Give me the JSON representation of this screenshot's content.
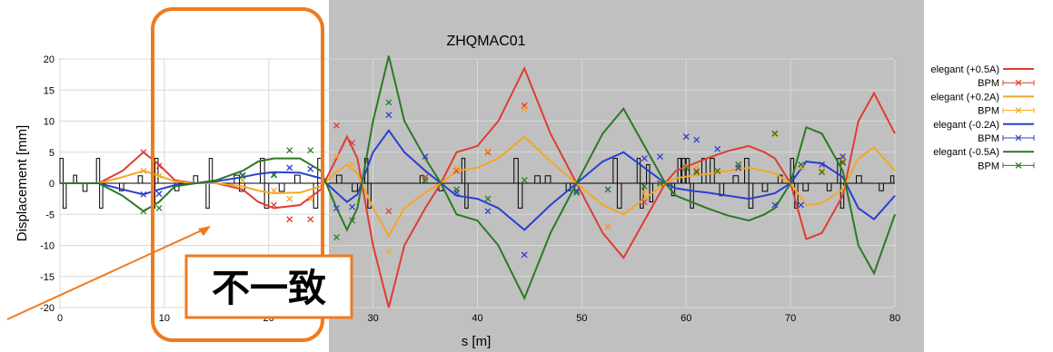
{
  "chart_data": {
    "type": "line",
    "title": "ZHQMAC01",
    "xlabel": "s [m]",
    "ylabel": "Displacement [mm]",
    "xlim": [
      0,
      80
    ],
    "ylim": [
      -20,
      20
    ],
    "xticks": [
      "0",
      "10",
      "20",
      "30",
      "40",
      "50",
      "60",
      "70",
      "80"
    ],
    "yticks": [
      "20",
      "15",
      "10",
      "5",
      "0",
      "-5",
      "-10",
      "-15",
      "-20"
    ],
    "grid": true,
    "legend_position": "right",
    "colors": {
      "p05": "#e03c32",
      "p02": "#f5a623",
      "m02": "#2a3fd0",
      "m05": "#2a7a22",
      "shade": "#c0c0c0",
      "annotation": "#f07a1e"
    },
    "series": [
      {
        "key": "p05",
        "name": "elegant (+0.5A)",
        "bpm_name": "BPM",
        "x": [
          0,
          3.7,
          6,
          8,
          9.5,
          11,
          13,
          15,
          17.5,
          19,
          20.5,
          23,
          25,
          26.5,
          27.5,
          28.5,
          30,
          31.5,
          33,
          35,
          36.5,
          38,
          40,
          42,
          44.5,
          47,
          49.5,
          52,
          54,
          56,
          58,
          59,
          60.5,
          62,
          64,
          66,
          67.5,
          68.5,
          70,
          71.5,
          73,
          75,
          76.5,
          78,
          80
        ],
        "y": [
          0,
          0,
          2,
          5,
          3,
          0.5,
          0,
          0,
          -1,
          -3,
          -4,
          -3.5,
          -1,
          4,
          7.5,
          4,
          -10,
          -20,
          -10,
          -4,
          0,
          5,
          6,
          10,
          18.5,
          8,
          0,
          -8,
          -12,
          -6,
          0,
          2,
          3,
          4,
          5.2,
          6,
          5,
          4,
          0,
          -9,
          -8,
          -2,
          10,
          14.5,
          8
        ]
      },
      {
        "key": "p02",
        "name": "elegant (+0.2A)",
        "bpm_name": "BPM",
        "x": [
          0,
          3.7,
          6,
          8,
          9.5,
          11,
          13,
          15,
          17.5,
          19,
          20.5,
          23,
          25,
          26.5,
          27.5,
          28.5,
          30,
          31.5,
          33,
          35,
          36.5,
          38,
          40,
          42,
          44.5,
          47,
          49.5,
          52,
          54,
          56,
          58,
          59,
          60.5,
          62,
          64,
          66,
          67.5,
          68.5,
          70,
          71.5,
          73,
          75,
          76.5,
          78,
          80
        ],
        "y": [
          0,
          0,
          1,
          2,
          1.2,
          0.3,
          0,
          0,
          -0.5,
          -1.2,
          -1.6,
          -1.5,
          -0.5,
          1.8,
          3,
          1.6,
          -4,
          -8.5,
          -4,
          -1.5,
          0,
          2,
          2.5,
          4,
          7.5,
          3.5,
          0,
          -3.5,
          -5,
          -2.5,
          0,
          0.8,
          1.2,
          1.5,
          2,
          2.5,
          2,
          1.6,
          0,
          -3.5,
          -3.2,
          -1,
          4,
          5.8,
          2
        ]
      },
      {
        "key": "m02",
        "name": "elegant (-0.2A)",
        "bpm_name": "BPM",
        "x": [
          0,
          3.7,
          6,
          8,
          9.5,
          11,
          13,
          15,
          17.5,
          19,
          20.5,
          23,
          25,
          26.5,
          27.5,
          28.5,
          30,
          31.5,
          33,
          35,
          36.5,
          38,
          40,
          42,
          44.5,
          47,
          49.5,
          52,
          54,
          56,
          58,
          59,
          60.5,
          62,
          64,
          66,
          67.5,
          68.5,
          70,
          71.5,
          73,
          75,
          76.5,
          78,
          80
        ],
        "y": [
          0,
          0,
          -1,
          -1.8,
          -1,
          -0.3,
          0,
          0.3,
          1,
          1.5,
          1.8,
          1.7,
          0.8,
          -1.5,
          -3,
          -1.8,
          5,
          8.5,
          5,
          2,
          0,
          -2,
          -2.5,
          -4,
          -7.5,
          -3.5,
          0,
          3.5,
          5,
          2.5,
          0,
          -0.8,
          -1.2,
          -1.5,
          -2,
          -2.5,
          -2,
          -1.6,
          0,
          3.5,
          3.2,
          1,
          -4,
          -5.8,
          -2
        ]
      },
      {
        "key": "m05",
        "name": "elegant (-0.5A)",
        "bpm_name": "BPM",
        "x": [
          0,
          3.7,
          6,
          8,
          9.5,
          11,
          13,
          15,
          17.5,
          19,
          20.5,
          23,
          25,
          26.5,
          27.5,
          28.5,
          30,
          31.5,
          33,
          35,
          36.5,
          38,
          40,
          42,
          44.5,
          47,
          49.5,
          52,
          54,
          56,
          58,
          59,
          60.5,
          62,
          64,
          66,
          67.5,
          68.5,
          70,
          71.5,
          73,
          75,
          76.5,
          78,
          80
        ],
        "y": [
          0,
          0,
          -2,
          -4.5,
          -3,
          -0.5,
          0,
          0.5,
          2,
          3.5,
          4,
          4,
          2,
          -4,
          -7.5,
          -4,
          10,
          20.5,
          10,
          4,
          0,
          -5,
          -6,
          -10,
          -18.5,
          -8,
          0,
          8,
          12,
          6,
          0,
          -2,
          -3,
          -4,
          -5.2,
          -6,
          -5,
          -4,
          0,
          9,
          8,
          2,
          -10,
          -14.5,
          -5
        ]
      }
    ],
    "bpm_points": {
      "x": [
        8,
        9.5,
        17.5,
        20.5,
        22,
        24,
        26.5,
        28,
        31.5,
        35,
        38,
        41,
        44.5,
        49.5,
        52.5,
        56,
        57.5,
        60,
        61,
        63,
        65,
        68.5,
        71,
        73,
        75
      ],
      "p05": [
        5,
        2.8,
        1.2,
        -3.5,
        -5.8,
        -5.8,
        9.3,
        6.5,
        -4.5,
        1,
        2,
        5,
        12.5,
        -1.5,
        -7,
        -3,
        0,
        2.5,
        2,
        1.8,
        3,
        8,
        2.5,
        1.8,
        3.5
      ],
      "p02": [
        2,
        1.2,
        0.5,
        -1.2,
        -2.5,
        -2.5,
        4.3,
        3,
        -11,
        0.5,
        2.5,
        5.2,
        12,
        -1.2,
        -7,
        -1.5,
        0,
        2.8,
        2.5,
        1.8,
        2.3,
        7.8,
        2.5,
        2,
        4
      ],
      "m02": [
        -1.8,
        -1.7,
        1.3,
        1.4,
        2.5,
        2.3,
        -4,
        -3.8,
        11,
        4.3,
        -1.5,
        -4.5,
        -11.5,
        -1.2,
        -1,
        4,
        4.3,
        7.5,
        7,
        5.5,
        2.5,
        -3.5,
        -3.5,
        3,
        4.3
      ],
      "m05": [
        -4.5,
        -4,
        1.2,
        1.3,
        5.3,
        5.3,
        -8.7,
        -6,
        13,
        0.5,
        -1,
        -2.5,
        0.5,
        -1.5,
        -1,
        -0.5,
        0,
        2.5,
        1.8,
        2,
        3,
        8,
        3,
        1.8,
        3.3
      ]
    },
    "lattice_elements": [
      {
        "s": 0,
        "w": 0.3,
        "h": 4
      },
      {
        "s": 0.3,
        "w": 0.3,
        "h": -4
      },
      {
        "s": 1.3,
        "w": 0.3,
        "h": 1.3
      },
      {
        "s": 2.2,
        "w": 0.4,
        "h": -1.3
      },
      {
        "s": 3.5,
        "w": 0.3,
        "h": 4
      },
      {
        "s": 3.8,
        "w": 0.3,
        "h": -4
      },
      {
        "s": 5.7,
        "w": 0.4,
        "h": -1.2
      },
      {
        "s": 7.5,
        "w": 0.4,
        "h": 1.2
      },
      {
        "s": 8.8,
        "w": 0.3,
        "h": -4
      },
      {
        "s": 9.1,
        "w": 0.3,
        "h": 4
      },
      {
        "s": 11,
        "w": 0.4,
        "h": -1.2
      },
      {
        "s": 12.8,
        "w": 0.4,
        "h": 1.2
      },
      {
        "s": 14,
        "w": 0.3,
        "h": -4
      },
      {
        "s": 14.3,
        "w": 0.3,
        "h": 4
      },
      {
        "s": 16.7,
        "w": 0.5,
        "h": 1.3
      },
      {
        "s": 17.2,
        "w": 0.5,
        "h": -1.3
      },
      {
        "s": 19.2,
        "w": 0.4,
        "h": 4
      },
      {
        "s": 19.6,
        "w": 0.4,
        "h": -4
      },
      {
        "s": 21,
        "w": 0.5,
        "h": -1.3
      },
      {
        "s": 22.5,
        "w": 0.5,
        "h": 1.3
      },
      {
        "s": 24.3,
        "w": 0.4,
        "h": -4
      },
      {
        "s": 24.7,
        "w": 0.4,
        "h": 4
      },
      {
        "s": 26.5,
        "w": 0.5,
        "h": 1.3
      },
      {
        "s": 28,
        "w": 0.5,
        "h": -1.3
      },
      {
        "s": 29.2,
        "w": 0.3,
        "h": 4
      },
      {
        "s": 29.5,
        "w": 0.3,
        "h": -4
      },
      {
        "s": 34.5,
        "w": 0.4,
        "h": 1.2
      },
      {
        "s": 36.3,
        "w": 0.4,
        "h": -1.2
      },
      {
        "s": 38.5,
        "w": 0.3,
        "h": 4
      },
      {
        "s": 38.8,
        "w": 0.3,
        "h": -4
      },
      {
        "s": 43.5,
        "w": 0.4,
        "h": 4
      },
      {
        "s": 43.9,
        "w": 0.4,
        "h": -4
      },
      {
        "s": 45.5,
        "w": 0.5,
        "h": 1.2
      },
      {
        "s": 46.5,
        "w": 0.5,
        "h": 1.2
      },
      {
        "s": 48.5,
        "w": 0.4,
        "h": -1.2
      },
      {
        "s": 53,
        "w": 0.4,
        "h": 4
      },
      {
        "s": 53.4,
        "w": 0.4,
        "h": -4
      },
      {
        "s": 55.3,
        "w": 0.3,
        "h": 4
      },
      {
        "s": 55.6,
        "w": 0.3,
        "h": -4
      },
      {
        "s": 56.2,
        "w": 0.3,
        "h": 3
      },
      {
        "s": 56.5,
        "w": 0.3,
        "h": -3
      },
      {
        "s": 58.6,
        "w": 0.3,
        "h": -2
      },
      {
        "s": 59.2,
        "w": 0.3,
        "h": 4
      },
      {
        "s": 59.6,
        "w": 0.3,
        "h": 4
      },
      {
        "s": 60.0,
        "w": 0.3,
        "h": 4
      },
      {
        "s": 60.4,
        "w": 0.3,
        "h": -4
      },
      {
        "s": 61.5,
        "w": 0.4,
        "h": 4
      },
      {
        "s": 62.3,
        "w": 0.4,
        "h": 4
      },
      {
        "s": 63.2,
        "w": 0.4,
        "h": -2
      },
      {
        "s": 64.5,
        "w": 0.5,
        "h": 1.2
      },
      {
        "s": 65.6,
        "w": 0.4,
        "h": 4
      },
      {
        "s": 66.0,
        "w": 0.4,
        "h": -4
      },
      {
        "s": 67.3,
        "w": 0.5,
        "h": -1.3
      },
      {
        "s": 68.8,
        "w": 0.4,
        "h": 1.3
      },
      {
        "s": 70.0,
        "w": 0.3,
        "h": 4
      },
      {
        "s": 70.4,
        "w": 0.3,
        "h": -4
      },
      {
        "s": 71.2,
        "w": 0.5,
        "h": -1.2
      },
      {
        "s": 73.5,
        "w": 0.4,
        "h": -1.2
      },
      {
        "s": 74.5,
        "w": 0.3,
        "h": 4
      },
      {
        "s": 74.8,
        "w": 0.3,
        "h": -4
      },
      {
        "s": 76.3,
        "w": 0.5,
        "h": 1.2
      },
      {
        "s": 78.5,
        "w": 0.4,
        "h": -1.2
      },
      {
        "s": 79.6,
        "w": 0.3,
        "h": 1.2
      }
    ],
    "annotations": [
      {
        "text": "不一致"
      }
    ]
  }
}
